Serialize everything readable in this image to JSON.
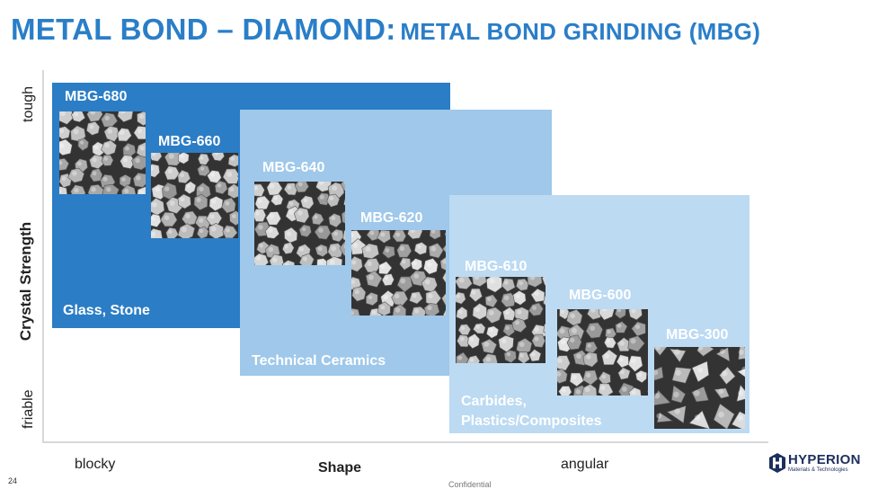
{
  "title": {
    "main": "METAL BOND – DIAMOND:",
    "sub": "METAL BOND GRINDING (MBG)"
  },
  "y_axis": {
    "label": "Crystal Strength",
    "top": "tough",
    "bottom": "friable"
  },
  "x_axis": {
    "label": "Shape",
    "left": "blocky",
    "right": "angular"
  },
  "regions": [
    {
      "label": "Glass, Stone",
      "color": "#2b7dc5"
    },
    {
      "label": "Technical Ceramics",
      "color": "#9fc8ea"
    },
    {
      "label_line1": "Carbides,",
      "label_line2": "Plastics/Composites",
      "color": "#bcdaf2"
    }
  ],
  "products": [
    {
      "name": "MBG-680"
    },
    {
      "name": "MBG-660"
    },
    {
      "name": "MBG-640"
    },
    {
      "name": "MBG-620"
    },
    {
      "name": "MBG-610"
    },
    {
      "name": "MBG-600"
    },
    {
      "name": "MBG-300"
    }
  ],
  "footer": {
    "page_number": "24",
    "confidential": "Confidential"
  },
  "logo": {
    "name": "HYPERION",
    "tagline": "Materials & Technologies",
    "color": "#1d2f5e"
  }
}
